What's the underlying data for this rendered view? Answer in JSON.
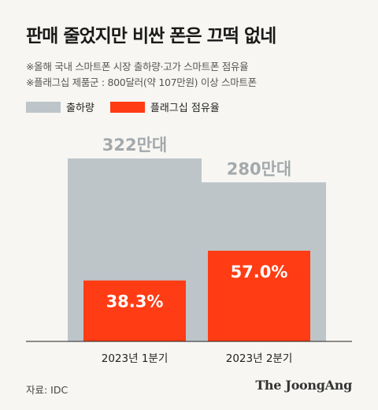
{
  "title": "판매 줄었지만 비싼 폰은 끄떡 없네",
  "notes": [
    "※올해 국내 스마트폰 시장 출하량·고가 스마트폰 점유율",
    "※플래그십 제품군 : 800달러(약 107만원) 이상 스마트폰"
  ],
  "legend": [
    {
      "label": "출하량",
      "color": "#bec5c9"
    },
    {
      "label": "플래그십 점유율",
      "color": "#ff3c14"
    }
  ],
  "chart_data": {
    "type": "bar",
    "categories": [
      "2023년 1분기",
      "2023년 2분기"
    ],
    "series": [
      {
        "name": "출하량",
        "values": [
          322,
          280
        ],
        "labels": [
          "322만대",
          "280만대"
        ],
        "unit": "만대",
        "color": "#bec5c9"
      },
      {
        "name": "플래그십 점유율",
        "values": [
          38.3,
          57.0
        ],
        "labels": [
          "38.3%",
          "57.0%"
        ],
        "unit": "%",
        "color": "#ff3c14"
      }
    ],
    "overlay": "share bar drawn inside shipment bar",
    "grid": false,
    "legend_position": "top-left"
  },
  "footer": {
    "source": "자료: IDC",
    "brand": "The JoongAng"
  }
}
